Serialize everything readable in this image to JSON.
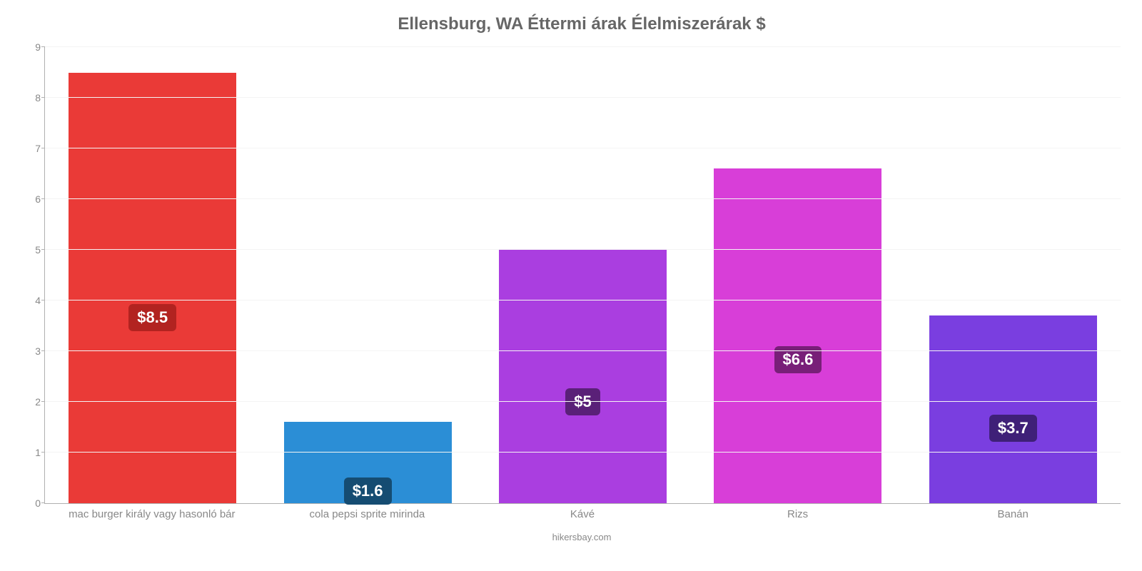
{
  "chart": {
    "type": "bar",
    "title": "Ellensburg, WA Éttermi árak Élelmiszerárak $",
    "title_color": "#666666",
    "title_fontsize": 24,
    "footer": "hikersbay.com",
    "background_color": "#ffffff",
    "grid_color": "#f4f4f4",
    "axis_color": "#b0b0b0",
    "tick_label_color": "#888888",
    "xlabel_fontsize": 15,
    "ytick_fontsize": 14,
    "ymin": 0,
    "ymax": 9,
    "ytick_step": 1,
    "bar_width_ratio": 0.78,
    "value_label_fontsize": 22,
    "value_label_text_color": "#ffffff",
    "value_label_border_radius": 6,
    "categories": [
      "mac burger király vagy hasonló bár",
      "cola pepsi sprite mirinda",
      "Kávé",
      "Rizs",
      "Banán"
    ],
    "values": [
      8.5,
      1.6,
      5,
      6.6,
      3.7
    ],
    "value_labels": [
      "$8.5",
      "$1.6",
      "$5",
      "$6.6",
      "$3.7"
    ],
    "bar_colors": [
      "#ea3a37",
      "#2b8ed6",
      "#aa3ee0",
      "#d83ed8",
      "#7a3ee0"
    ],
    "label_bg_colors": [
      "#b22320",
      "#154c72",
      "#5a2078",
      "#781f78",
      "#3f2078"
    ],
    "label_vertical_pos": [
      0.57,
      0.85,
      0.6,
      0.57,
      0.6
    ]
  }
}
